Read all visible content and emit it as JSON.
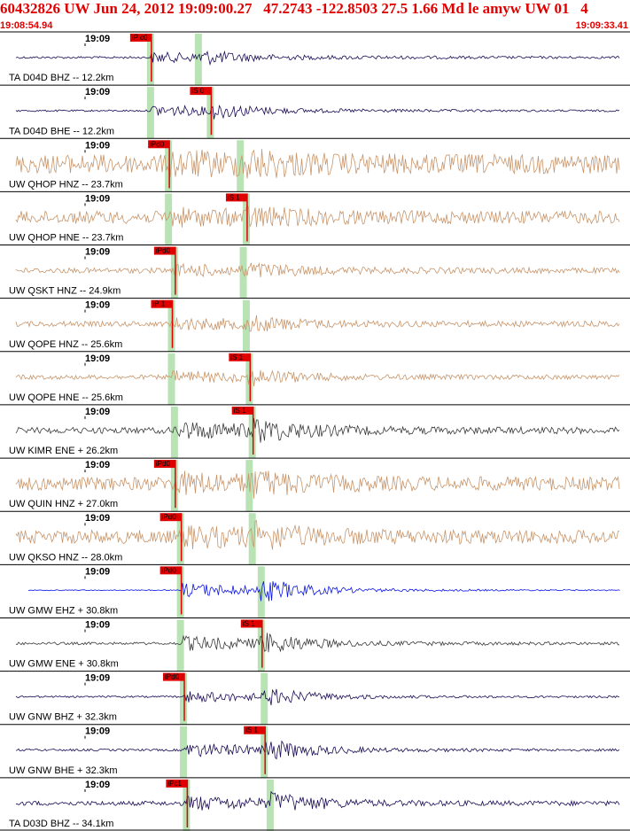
{
  "header": {
    "title": "60432826 UW Jun 24, 2012 19:09:00.27   47.2743 -122.8503 27.5 1.66 Md le amyw UW 01   4",
    "start_time": "19:08:54.94",
    "end_time": "19:09:33.41"
  },
  "chart_data": {
    "type": "line",
    "x_axis": {
      "start_time": "19:08:54.94",
      "end_time": "19:09:33.41",
      "minute_tick_label": "19:09"
    },
    "grid": false,
    "traces": [
      {
        "label": "TA D04D BHZ -- 12.2km",
        "color": "#1a0a55",
        "amp": 0.35,
        "noise": 0.05,
        "pick": "iP c0",
        "pick_phase": "P",
        "ptime": 0.25,
        "stime": 0.33
      },
      {
        "label": "TA D04D BHE -- 12.2km",
        "color": "#1a0a55",
        "amp": 0.4,
        "noise": 0.04,
        "pick": "iS 0",
        "pick_phase": "S",
        "ptime": 0.25,
        "stime": 0.35
      },
      {
        "label": "UW QHOP HNZ -- 23.7km",
        "color": "#c8956a",
        "amp": 0.5,
        "noise": 0.42,
        "pick": "iPd0",
        "pick_phase": "P",
        "ptime": 0.28,
        "stime": 0.4
      },
      {
        "label": "UW QHOP HNE -- 23.7km",
        "color": "#c8956a",
        "amp": 0.35,
        "noise": 0.28,
        "pick": "iS 1",
        "pick_phase": "S",
        "ptime": 0.28,
        "stime": 0.41
      },
      {
        "label": "UW QSKT HNZ -- 24.9km",
        "color": "#c8956a",
        "amp": 0.35,
        "noise": 0.12,
        "pick": "iPd0",
        "pick_phase": "P",
        "ptime": 0.29,
        "stime": 0.405
      },
      {
        "label": "UW QOPE HNZ -- 25.6km",
        "color": "#c8956a",
        "amp": 0.35,
        "noise": 0.12,
        "pick": "iP 1",
        "pick_phase": "P",
        "ptime": 0.285,
        "stime": 0.41
      },
      {
        "label": "UW QOPE HNE -- 25.6km",
        "color": "#c8956a",
        "amp": 0.35,
        "noise": 0.1,
        "pick": "iS 1",
        "pick_phase": "S",
        "ptime": 0.285,
        "stime": 0.415
      },
      {
        "label": "UW KIMR ENE + 26.2km",
        "color": "#3a3a3a",
        "amp": 0.55,
        "noise": 0.14,
        "pick": "iS 1",
        "pick_phase": "S",
        "ptime": 0.29,
        "stime": 0.42
      },
      {
        "label": "UW QUIN HNZ + 27.0km",
        "color": "#c8956a",
        "amp": 0.5,
        "noise": 0.3,
        "pick": "iPd0",
        "pick_phase": "P",
        "ptime": 0.29,
        "stime": 0.415
      },
      {
        "label": "UW QKSO HNZ -- 28.0km",
        "color": "#c8956a",
        "amp": 0.5,
        "noise": 0.3,
        "pick": "iPd0",
        "pick_phase": "P",
        "ptime": 0.3,
        "stime": 0.42
      },
      {
        "label": "UW GMW EHZ + 30.8km",
        "color": "#0a14e6",
        "amp": 0.55,
        "noise": 0.02,
        "pick": "iPd0",
        "pick_phase": "P",
        "ptime": 0.3,
        "stime": 0.435
      },
      {
        "label": "UW GMW ENE + 30.8km",
        "color": "#3a3a3a",
        "amp": 0.5,
        "noise": 0.06,
        "pick": "iS 1",
        "pick_phase": "S",
        "ptime": 0.3,
        "stime": 0.435
      },
      {
        "label": "UW GNW BHZ + 32.3km",
        "color": "#1a0a55",
        "amp": 0.4,
        "noise": 0.04,
        "pick": "iPd0",
        "pick_phase": "P",
        "ptime": 0.305,
        "stime": 0.44
      },
      {
        "label": "UW GNW BHE + 32.3km",
        "color": "#1a0a55",
        "amp": 0.5,
        "noise": 0.05,
        "pick": "iS 1",
        "pick_phase": "S",
        "ptime": 0.305,
        "stime": 0.44
      },
      {
        "label": "TA D03D BHZ -- 34.1km",
        "color": "#1a0a55",
        "amp": 0.45,
        "noise": 0.1,
        "pick": "iPc1",
        "pick_phase": "P",
        "ptime": 0.31,
        "stime": 0.45
      }
    ]
  }
}
